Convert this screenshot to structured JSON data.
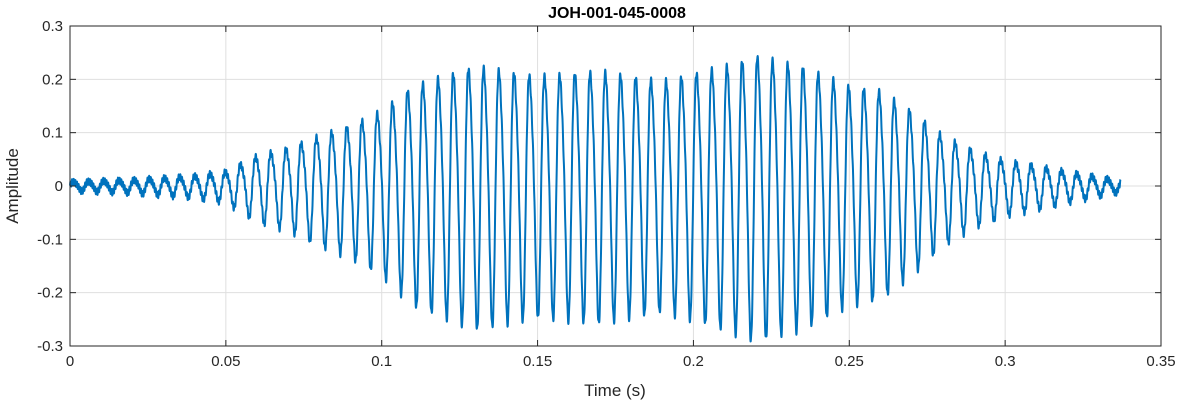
{
  "chart_data": {
    "type": "line",
    "title": "JOH-001-045-0008",
    "xlabel": "Time (s)",
    "ylabel": "Amplitude",
    "xlim": [
      0,
      0.35
    ],
    "ylim": [
      -0.3,
      0.3
    ],
    "xticks": [
      0,
      0.05,
      0.1,
      0.15,
      0.2,
      0.25,
      0.3,
      0.35
    ],
    "xtick_labels": [
      "0",
      "0.05",
      "0.1",
      "0.15",
      "0.2",
      "0.25",
      "0.3",
      "0.35"
    ],
    "yticks": [
      -0.3,
      -0.2,
      -0.1,
      0,
      0.1,
      0.2,
      0.3
    ],
    "ytick_labels": [
      "-0.3",
      "-0.2",
      "-0.1",
      "0",
      "0.1",
      "0.2",
      "0.3"
    ],
    "grid": true,
    "series": [
      {
        "color": "#0072BD",
        "signal": {
          "start": 0,
          "end": 0.337,
          "frequency_hz": 205,
          "envelope": [
            [
              0.0,
              0.008
            ],
            [
              0.02,
              0.012
            ],
            [
              0.04,
              0.02
            ],
            [
              0.05,
              0.028
            ],
            [
              0.06,
              0.06
            ],
            [
              0.07,
              0.075
            ],
            [
              0.08,
              0.1
            ],
            [
              0.09,
              0.12
            ],
            [
              0.1,
              0.15
            ],
            [
              0.11,
              0.2
            ],
            [
              0.12,
              0.22
            ],
            [
              0.13,
              0.24
            ],
            [
              0.15,
              0.22
            ],
            [
              0.17,
              0.23
            ],
            [
              0.19,
              0.21
            ],
            [
              0.21,
              0.24
            ],
            [
              0.22,
              0.26
            ],
            [
              0.235,
              0.24
            ],
            [
              0.25,
              0.2
            ],
            [
              0.26,
              0.19
            ],
            [
              0.27,
              0.15
            ],
            [
              0.28,
              0.1
            ],
            [
              0.29,
              0.07
            ],
            [
              0.3,
              0.05
            ],
            [
              0.31,
              0.04
            ],
            [
              0.32,
              0.028
            ],
            [
              0.337,
              0.01
            ]
          ]
        }
      }
    ]
  }
}
